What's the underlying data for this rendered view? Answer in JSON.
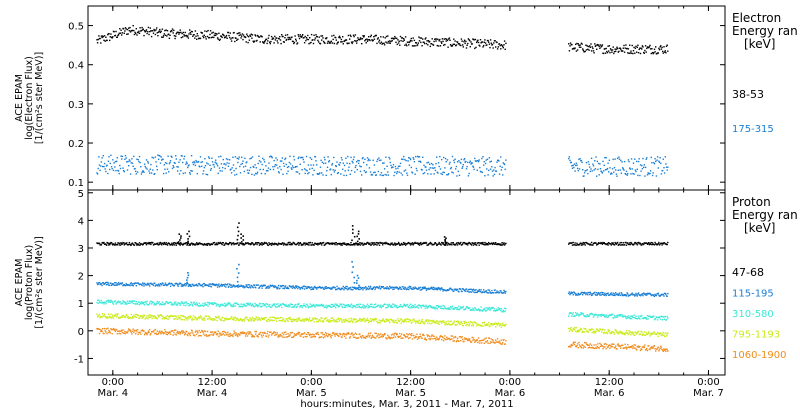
{
  "xlabel": "hours:minutes, Mar.  3, 2011 - Mar.  7, 2011",
  "x_ticks": [
    {
      "time": "0:00",
      "date": "Mar. 4"
    },
    {
      "time": "12:00",
      "date": "Mar. 4"
    },
    {
      "time": "0:00",
      "date": "Mar. 5"
    },
    {
      "time": "12:00",
      "date": "Mar. 5"
    },
    {
      "time": "0:00",
      "date": "Mar. 6"
    },
    {
      "time": "12:00",
      "date": "Mar. 6"
    },
    {
      "time": "0:00",
      "date": "Mar. 7"
    }
  ],
  "chart_data": [
    {
      "type": "scatter",
      "ylabel_lines": [
        "ACE EPAM",
        "log(Electron Flux)",
        "[1/(cm²s ster MeV)]"
      ],
      "legend_title_lines": [
        "Electron",
        "Energy ran",
        "[keV]"
      ],
      "yticks": [
        0.1,
        0.2,
        0.3,
        0.4,
        0.5
      ],
      "ylim": [
        0.08,
        0.55
      ],
      "xlim": [
        "2011-03-03T21:00",
        "2011-03-07T02:00"
      ],
      "data_gap": [
        "2011-03-05T23:30",
        "2011-03-06T07:00"
      ],
      "series": [
        {
          "name": "38-53",
          "color": "#000000",
          "x": [
            "2011-03-03T22:00",
            "2011-03-04T00:00",
            "2011-03-04T02:00",
            "2011-03-04T06:00",
            "2011-03-04T12:00",
            "2011-03-04T18:00",
            "2011-03-05T00:00",
            "2011-03-05T06:00",
            "2011-03-05T12:00",
            "2011-03-05T18:00",
            "2011-03-05T23:30",
            "2011-03-06T07:00",
            "2011-03-06T12:00",
            "2011-03-06T16:00",
            "2011-03-06T19:00"
          ],
          "y": [
            0.46,
            0.475,
            0.49,
            0.48,
            0.475,
            0.465,
            0.465,
            0.465,
            0.46,
            0.455,
            0.45,
            0.445,
            0.44,
            0.44,
            0.44
          ],
          "spread": 0.012
        },
        {
          "name": "175-315",
          "color": "#1a7fd4",
          "x": [
            "2011-03-03T22:00",
            "2011-03-05T23:30",
            "2011-03-06T07:00",
            "2011-03-06T19:00"
          ],
          "y": [
            0.145,
            0.14,
            0.14,
            0.14
          ],
          "spread": 0.025
        }
      ]
    },
    {
      "type": "scatter",
      "ylabel_lines": [
        "ACE EPAM",
        "log(Proton Flux)",
        "[1/(cm²s ster MeV)]"
      ],
      "legend_title_lines": [
        "Proton",
        "Energy ran",
        "[keV]"
      ],
      "yticks": [
        -1,
        0,
        1,
        2,
        3,
        4,
        5
      ],
      "ylim": [
        -1.6,
        5.1
      ],
      "xlim": [
        "2011-03-03T21:00",
        "2011-03-07T02:00"
      ],
      "data_gap": [
        "2011-03-05T23:30",
        "2011-03-06T07:00"
      ],
      "series": [
        {
          "name": "47-68",
          "color": "#000000",
          "x": [
            "2011-03-03T22:00",
            "2011-03-05T23:30",
            "2011-03-06T07:00",
            "2011-03-06T19:00"
          ],
          "y": [
            3.15,
            3.15,
            3.15,
            3.15
          ],
          "spread": 0.05,
          "spikes": [
            {
              "x": "2011-03-04T08:00",
              "y": 3.5
            },
            {
              "x": "2011-03-04T09:00",
              "y": 3.6
            },
            {
              "x": "2011-03-04T15:00",
              "y": 3.9
            },
            {
              "x": "2011-03-04T15:30",
              "y": 3.5
            },
            {
              "x": "2011-03-05T05:00",
              "y": 3.8
            },
            {
              "x": "2011-03-05T05:30",
              "y": 3.6
            },
            {
              "x": "2011-03-05T16:00",
              "y": 3.4
            }
          ]
        },
        {
          "name": "115-195",
          "color": "#1a7fd4",
          "x": [
            "2011-03-03T22:00",
            "2011-03-04T12:00",
            "2011-03-05T00:00",
            "2011-03-05T12:00",
            "2011-03-05T23:30",
            "2011-03-06T07:00",
            "2011-03-06T19:00"
          ],
          "y": [
            1.7,
            1.65,
            1.55,
            1.55,
            1.4,
            1.35,
            1.3
          ],
          "spread": 0.06,
          "spikes": [
            {
              "x": "2011-03-04T09:00",
              "y": 2.1
            },
            {
              "x": "2011-03-04T15:00",
              "y": 2.4
            },
            {
              "x": "2011-03-05T05:00",
              "y": 2.5
            },
            {
              "x": "2011-03-05T05:30",
              "y": 2.0
            }
          ]
        },
        {
          "name": "310-580",
          "color": "#3ee8d8",
          "x": [
            "2011-03-03T22:00",
            "2011-03-04T12:00",
            "2011-03-05T00:00",
            "2011-03-05T12:00",
            "2011-03-05T23:30",
            "2011-03-06T07:00",
            "2011-03-06T19:00"
          ],
          "y": [
            1.05,
            0.95,
            0.9,
            0.9,
            0.75,
            0.6,
            0.45
          ],
          "spread": 0.07
        },
        {
          "name": "795-1193",
          "color": "#c8ec1a",
          "x": [
            "2011-03-03T22:00",
            "2011-03-04T12:00",
            "2011-03-05T00:00",
            "2011-03-05T12:00",
            "2011-03-05T23:30",
            "2011-03-06T07:00",
            "2011-03-06T19:00"
          ],
          "y": [
            0.55,
            0.45,
            0.4,
            0.35,
            0.2,
            0.05,
            -0.15
          ],
          "spread": 0.08
        },
        {
          "name": "1060-1900",
          "color": "#f08c1e",
          "x": [
            "2011-03-03T22:00",
            "2011-03-04T12:00",
            "2011-03-05T00:00",
            "2011-03-05T12:00",
            "2011-03-05T23:30",
            "2011-03-06T07:00",
            "2011-03-06T19:00"
          ],
          "y": [
            0.0,
            -0.1,
            -0.15,
            -0.2,
            -0.4,
            -0.5,
            -0.65
          ],
          "spread": 0.1
        }
      ]
    }
  ]
}
